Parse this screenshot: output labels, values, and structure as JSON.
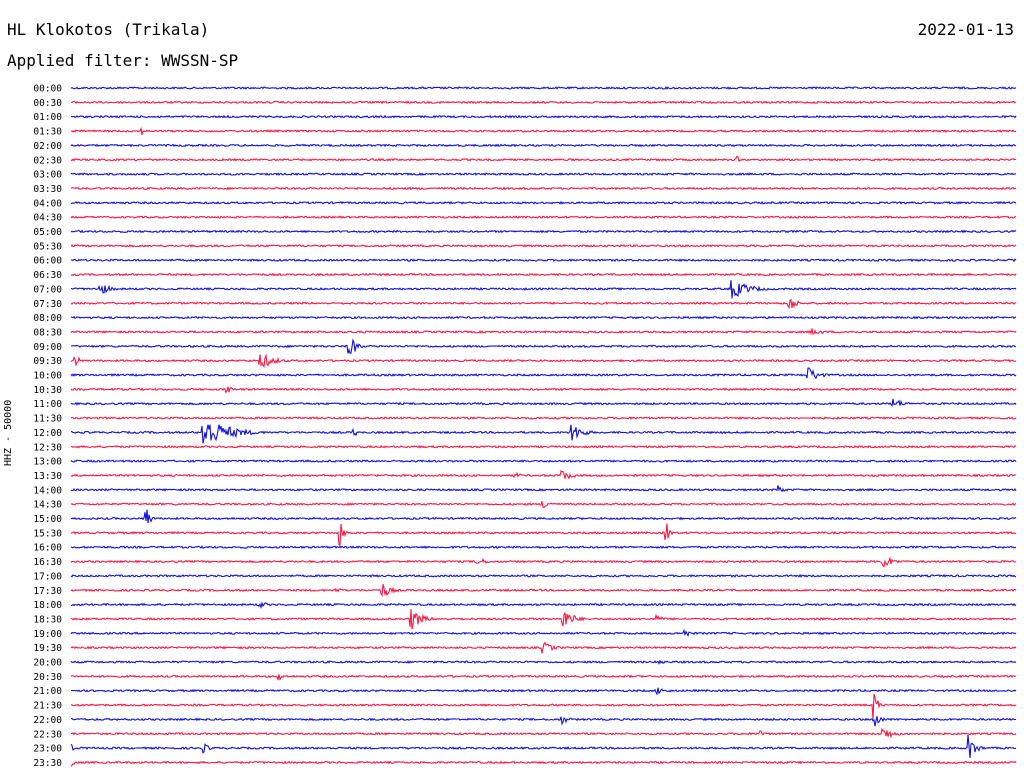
{
  "header": {
    "station": "HL Klokotos (Trikala)",
    "date": "2022-01-13",
    "filter": "Applied filter: WWSSN-SP"
  },
  "colors": {
    "even": "#1010e0",
    "odd": "#ff1744"
  },
  "chart_data": {
    "type": "line",
    "ylabel": "HHZ - 50000",
    "rows": [
      "00:00",
      "00:30",
      "01:00",
      "01:30",
      "02:00",
      "02:30",
      "03:00",
      "03:30",
      "04:00",
      "04:30",
      "05:00",
      "05:30",
      "06:00",
      "06:30",
      "07:00",
      "07:30",
      "08:00",
      "08:30",
      "09:00",
      "09:30",
      "10:00",
      "10:30",
      "11:00",
      "11:30",
      "12:00",
      "12:30",
      "13:00",
      "13:30",
      "14:00",
      "14:30",
      "15:00",
      "15:30",
      "16:00",
      "16:30",
      "17:00",
      "17:30",
      "18:00",
      "18:30",
      "19:00",
      "19:30",
      "20:00",
      "20:30",
      "21:00",
      "21:30",
      "22:00",
      "22:30",
      "23:00",
      "23:30"
    ],
    "events": [
      {
        "row": 3,
        "pos": 0.075,
        "amp": 4,
        "dur": 0.006
      },
      {
        "row": 5,
        "pos": 0.705,
        "amp": 4,
        "dur": 0.006
      },
      {
        "row": 14,
        "pos": 0.7,
        "amp": 10,
        "dur": 0.05
      },
      {
        "row": 14,
        "pos": 0.03,
        "amp": 7,
        "dur": 0.03
      },
      {
        "row": 15,
        "pos": 0.76,
        "amp": 9,
        "dur": 0.02
      },
      {
        "row": 17,
        "pos": 0.785,
        "amp": 4,
        "dur": 0.03
      },
      {
        "row": 18,
        "pos": 0.295,
        "amp": 12,
        "dur": 0.02
      },
      {
        "row": 19,
        "pos": 0.2,
        "amp": 9,
        "dur": 0.04
      },
      {
        "row": 19,
        "pos": 0.005,
        "amp": 8,
        "dur": 0.01
      },
      {
        "row": 20,
        "pos": 0.78,
        "amp": 9,
        "dur": 0.03
      },
      {
        "row": 21,
        "pos": 0.165,
        "amp": 10,
        "dur": 0.008
      },
      {
        "row": 22,
        "pos": 0.87,
        "amp": 6,
        "dur": 0.03
      },
      {
        "row": 24,
        "pos": 0.14,
        "amp": 18,
        "dur": 0.07
      },
      {
        "row": 24,
        "pos": 0.53,
        "amp": 11,
        "dur": 0.03
      },
      {
        "row": 24,
        "pos": 0.3,
        "amp": 5,
        "dur": 0.008
      },
      {
        "row": 27,
        "pos": 0.52,
        "amp": 6,
        "dur": 0.03
      },
      {
        "row": 27,
        "pos": 0.47,
        "amp": 3,
        "dur": 0.02
      },
      {
        "row": 28,
        "pos": 0.75,
        "amp": 6,
        "dur": 0.01
      },
      {
        "row": 29,
        "pos": 0.5,
        "amp": 5,
        "dur": 0.025
      },
      {
        "row": 30,
        "pos": 0.08,
        "amp": 14,
        "dur": 0.01
      },
      {
        "row": 31,
        "pos": 0.285,
        "amp": 14,
        "dur": 0.01
      },
      {
        "row": 31,
        "pos": 0.63,
        "amp": 12,
        "dur": 0.01
      },
      {
        "row": 33,
        "pos": 0.43,
        "amp": 5,
        "dur": 0.025
      },
      {
        "row": 33,
        "pos": 0.86,
        "amp": 7,
        "dur": 0.03
      },
      {
        "row": 35,
        "pos": 0.33,
        "amp": 8,
        "dur": 0.025
      },
      {
        "row": 35,
        "pos": 0.28,
        "amp": 3,
        "dur": 0.02
      },
      {
        "row": 36,
        "pos": 0.2,
        "amp": 4,
        "dur": 0.02
      },
      {
        "row": 37,
        "pos": 0.36,
        "amp": 12,
        "dur": 0.03
      },
      {
        "row": 37,
        "pos": 0.52,
        "amp": 12,
        "dur": 0.03
      },
      {
        "row": 37,
        "pos": 0.62,
        "amp": 4,
        "dur": 0.02
      },
      {
        "row": 38,
        "pos": 0.65,
        "amp": 4,
        "dur": 0.02
      },
      {
        "row": 39,
        "pos": 0.5,
        "amp": 6,
        "dur": 0.03
      },
      {
        "row": 40,
        "pos": 0.62,
        "amp": 4,
        "dur": 0.02
      },
      {
        "row": 41,
        "pos": 0.22,
        "amp": 4,
        "dur": 0.02
      },
      {
        "row": 42,
        "pos": 0.62,
        "amp": 4,
        "dur": 0.03
      },
      {
        "row": 43,
        "pos": 0.85,
        "amp": 16,
        "dur": 0.01
      },
      {
        "row": 44,
        "pos": 0.52,
        "amp": 5,
        "dur": 0.02
      },
      {
        "row": 44,
        "pos": 0.85,
        "amp": 12,
        "dur": 0.015
      },
      {
        "row": 45,
        "pos": 0.86,
        "amp": 7,
        "dur": 0.03
      },
      {
        "row": 45,
        "pos": 0.73,
        "amp": 5,
        "dur": 0.01
      },
      {
        "row": 46,
        "pos": 0.95,
        "amp": 14,
        "dur": 0.02
      },
      {
        "row": 46,
        "pos": 0.14,
        "amp": 5,
        "dur": 0.02
      },
      {
        "row": 46,
        "pos": 0.0,
        "amp": 4,
        "dur": 0.01
      },
      {
        "row": 47,
        "pos": 0.002,
        "amp": 6,
        "dur": 0.005
      }
    ]
  }
}
